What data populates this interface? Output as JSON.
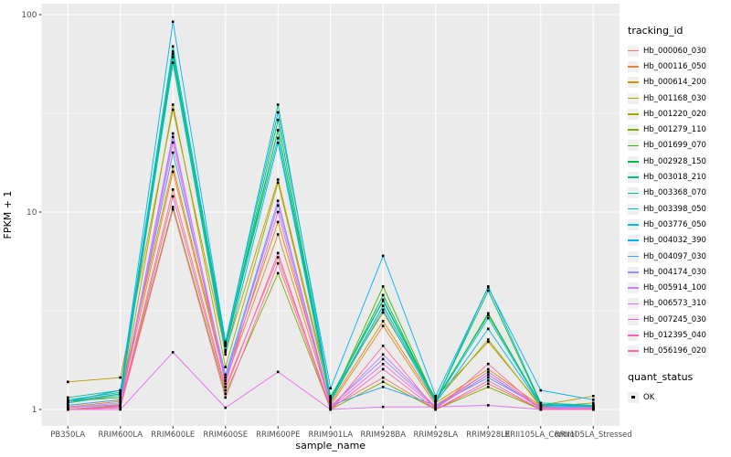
{
  "chart_data": {
    "type": "line",
    "title": "",
    "xlabel": "sample_name",
    "ylabel": "FPKM + 1",
    "yscale": "log10",
    "ylim": [
      0.85,
      115
    ],
    "yticks": [
      1,
      10,
      100
    ],
    "ytick_labels": [
      "1",
      "10",
      "100"
    ],
    "yminor": [
      3.162,
      31.62
    ],
    "grid": "on",
    "legend_position": "right",
    "panel_bg": "#EBEBEB",
    "grid_color": "#FFFFFF",
    "tick_color": "#333333",
    "tick_label_color": "#4D4D4D",
    "point_color": "#000000",
    "categories": [
      "PB350LA",
      "RRIM600LA",
      "RRIM600LE",
      "RRIM600SE",
      "RRIM600PE",
      "RRIM901LA",
      "RRIM928BA",
      "RRIM928LA",
      "RRIM928LE",
      "RRII105LA_Control",
      "RRII105LA_Stressed"
    ],
    "series": [
      {
        "name": "Hb_000060_030",
        "color": "#F8766D",
        "values": [
          1.0,
          1.05,
          13.0,
          1.3,
          5.9,
          1.02,
          1.45,
          1.0,
          1.35,
          1.0,
          1.0
        ]
      },
      {
        "name": "Hb_000116_050",
        "color": "#EA8331",
        "values": [
          1.03,
          1.1,
          16.0,
          1.4,
          7.7,
          1.05,
          2.65,
          1.05,
          1.55,
          1.02,
          1.02
        ]
      },
      {
        "name": "Hb_000614_200",
        "color": "#D89000",
        "values": [
          1.08,
          1.2,
          17.0,
          1.45,
          8.9,
          1.08,
          2.8,
          1.08,
          1.6,
          1.04,
          1.05
        ]
      },
      {
        "name": "Hb_001168_030",
        "color": "#C09B00",
        "values": [
          1.38,
          1.45,
          33.0,
          1.96,
          14.6,
          1.17,
          3.1,
          1.15,
          2.2,
          1.05,
          1.17
        ]
      },
      {
        "name": "Hb_001220_020",
        "color": "#A3A500",
        "values": [
          1.05,
          1.12,
          35.0,
          1.64,
          14.1,
          1.1,
          3.35,
          1.1,
          2.26,
          1.03,
          1.08
        ]
      },
      {
        "name": "Hb_001279_110",
        "color": "#7CAE00",
        "values": [
          1.0,
          1.05,
          10.6,
          1.2,
          4.9,
          1.0,
          1.38,
          1.0,
          1.3,
          1.0,
          1.0
        ]
      },
      {
        "name": "Hb_001699_070",
        "color": "#39B600",
        "values": [
          1.1,
          1.15,
          57.0,
          2.0,
          26.0,
          1.1,
          4.2,
          1.1,
          3.07,
          1.05,
          1.05
        ]
      },
      {
        "name": "Hb_002928_150",
        "color": "#00BB4E",
        "values": [
          1.1,
          1.2,
          61.0,
          2.1,
          29.3,
          1.12,
          3.8,
          1.1,
          4.0,
          1.06,
          1.04
        ]
      },
      {
        "name": "Hb_003018_210",
        "color": "#00BF7D",
        "values": [
          1.12,
          1.22,
          63.0,
          2.15,
          26.0,
          1.15,
          3.6,
          1.12,
          3.0,
          1.06,
          1.05
        ]
      },
      {
        "name": "Hb_003368_070",
        "color": "#00C1A3",
        "values": [
          1.15,
          1.25,
          69.0,
          2.2,
          35.0,
          1.15,
          3.55,
          1.1,
          4.2,
          1.08,
          1.05
        ]
      },
      {
        "name": "Hb_003398_050",
        "color": "#00BFC4",
        "values": [
          1.1,
          1.2,
          65.0,
          2.1,
          23.7,
          1.12,
          3.35,
          1.1,
          2.9,
          1.05,
          1.05
        ]
      },
      {
        "name": "Hb_003776_050",
        "color": "#00BAE0",
        "values": [
          1.08,
          1.18,
          57.0,
          1.9,
          22.4,
          1.1,
          3.2,
          1.08,
          2.56,
          1.05,
          1.03
        ]
      },
      {
        "name": "Hb_004032_390",
        "color": "#00B0F6",
        "values": [
          1.1,
          1.25,
          92.0,
          2.2,
          32.0,
          1.28,
          6.0,
          1.17,
          4.15,
          1.25,
          1.12
        ]
      },
      {
        "name": "Hb_004097_030",
        "color": "#35A2FF",
        "values": [
          1.05,
          1.12,
          20.0,
          1.5,
          11.4,
          1.05,
          1.3,
          1.05,
          1.45,
          1.03,
          1.03
        ]
      },
      {
        "name": "Hb_004174_030",
        "color": "#9590FF",
        "values": [
          1.02,
          1.08,
          24.0,
          1.45,
          10.8,
          1.04,
          1.8,
          1.03,
          1.5,
          1.02,
          1.02
        ]
      },
      {
        "name": "Hb_005914_100",
        "color": "#C77CFF",
        "values": [
          1.02,
          1.06,
          25.0,
          1.4,
          11.4,
          1.03,
          1.9,
          1.03,
          1.55,
          1.02,
          1.02
        ]
      },
      {
        "name": "Hb_006573_310",
        "color": "#E76BF3",
        "values": [
          1.0,
          1.0,
          1.95,
          1.02,
          1.55,
          1.0,
          1.03,
          1.03,
          1.05,
          1.0,
          1.0
        ]
      },
      {
        "name": "Hb_007245_030",
        "color": "#FA62DB",
        "values": [
          1.0,
          1.04,
          22.5,
          1.35,
          10.0,
          1.02,
          1.7,
          1.02,
          1.5,
          1.01,
          1.01
        ]
      },
      {
        "name": "Hb_012395_040",
        "color": "#FF62BC",
        "values": [
          1.0,
          1.03,
          12.0,
          1.25,
          6.2,
          1.0,
          1.6,
          1.0,
          1.4,
          1.0,
          1.0
        ]
      },
      {
        "name": "Hb_056196_020",
        "color": "#FF6A98",
        "values": [
          1.0,
          1.02,
          10.3,
          1.15,
          5.5,
          1.0,
          2.1,
          1.0,
          1.7,
          1.0,
          1.0
        ]
      }
    ]
  },
  "legend": {
    "tracking_title": "tracking_id",
    "quant_title": "quant_status",
    "quant_items": [
      {
        "label": "OK"
      }
    ]
  }
}
